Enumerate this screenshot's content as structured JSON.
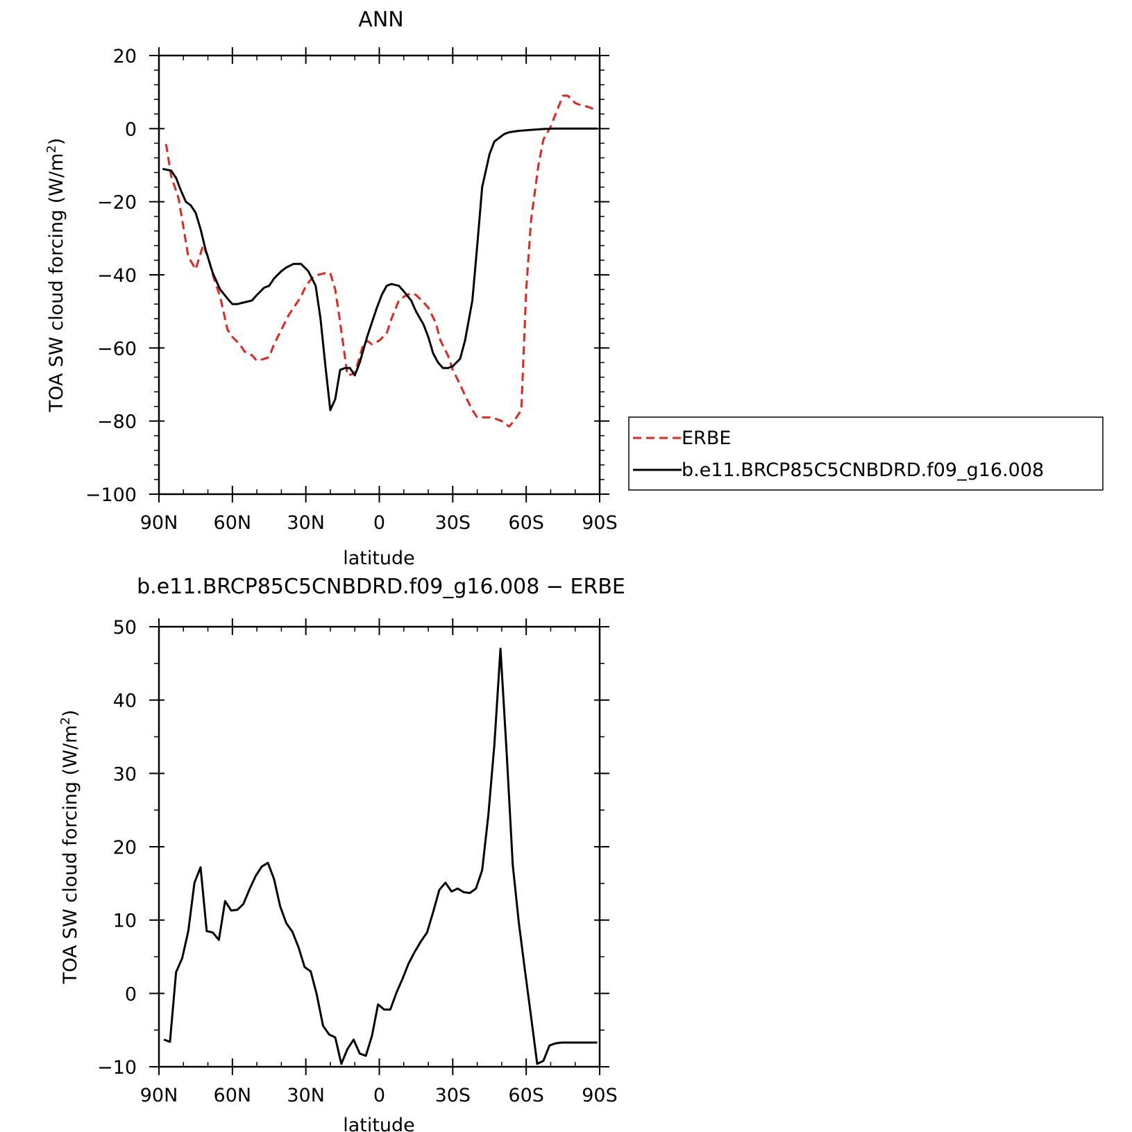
{
  "colors": {
    "erbe": "#e8231c",
    "model": "#000000",
    "frame": "#000000"
  },
  "chart_data": [
    {
      "type": "line",
      "title": "ANN",
      "xlabel": "latitude",
      "ylabel": "TOA SW cloud forcing (W/m²)",
      "ylabel_parts": {
        "main": "TOA SW cloud forcing (W/m",
        "sup": "2",
        "end": ")"
      },
      "xlim": [
        90,
        -90
      ],
      "ylim": [
        -100,
        20
      ],
      "xticks": [
        {
          "value": 90,
          "label": "90N"
        },
        {
          "value": 60,
          "label": "60N"
        },
        {
          "value": 30,
          "label": "30N"
        },
        {
          "value": 0,
          "label": "0"
        },
        {
          "value": -30,
          "label": "30S"
        },
        {
          "value": -60,
          "label": "60S"
        },
        {
          "value": -90,
          "label": "90S"
        }
      ],
      "yticks": [
        {
          "value": 20,
          "label": "20"
        },
        {
          "value": 0,
          "label": "0"
        },
        {
          "value": -20,
          "label": "−20"
        },
        {
          "value": -40,
          "label": "−40"
        },
        {
          "value": -60,
          "label": "−60"
        },
        {
          "value": -80,
          "label": "−80"
        },
        {
          "value": -100,
          "label": "−100"
        }
      ],
      "legend": {
        "position": "right"
      },
      "series": [
        {
          "name": "ERBE",
          "style": "dashed",
          "color": "#e8231c",
          "x": [
            87.5,
            87,
            85,
            82,
            80,
            78,
            75,
            72,
            70,
            68,
            65,
            62,
            60,
            57,
            55,
            52,
            50,
            47,
            45,
            43,
            40,
            37,
            35,
            32,
            30,
            27,
            25,
            22,
            20,
            18,
            16,
            13,
            10,
            7,
            5,
            3,
            0,
            -3,
            -5,
            -8,
            -10,
            -13,
            -15,
            -18,
            -20,
            -23,
            -25,
            -28,
            -30,
            -33,
            -35,
            -38,
            -40,
            -43,
            -45,
            -48,
            -50,
            -53,
            -55,
            -58,
            -60,
            -62,
            -65,
            -67,
            -70,
            -72,
            -75,
            -77,
            -80,
            -82,
            -85,
            -87,
            -88.5
          ],
          "y": [
            -4.5,
            -4.5,
            -13,
            -19,
            -27,
            -35,
            -38.5,
            -32,
            -35,
            -40,
            -46,
            -55,
            -57,
            -59,
            -61,
            -62,
            -63.5,
            -63,
            -62.5,
            -59,
            -55,
            -51,
            -49,
            -46,
            -43,
            -40.5,
            -40,
            -39.5,
            -39.5,
            -44,
            -53,
            -67.5,
            -67,
            -60,
            -58,
            -59,
            -58,
            -56,
            -52,
            -47,
            -46,
            -45,
            -45.5,
            -47.5,
            -49,
            -53,
            -58,
            -62,
            -66,
            -70,
            -73,
            -77,
            -79,
            -79,
            -79,
            -79.5,
            -80,
            -81.5,
            -80,
            -77,
            -44,
            -25,
            -10,
            -3,
            0.5,
            4,
            9,
            9,
            7,
            6.5,
            6,
            5.5,
            5
          ]
        },
        {
          "name": "b.e11.BRCP85C5CNBDRD.f09_g16.008",
          "style": "solid",
          "color": "#000000",
          "x": [
            88.5,
            85,
            83,
            81,
            79,
            77,
            75,
            73,
            71,
            68,
            65,
            62,
            60,
            58,
            55,
            52,
            50,
            47,
            45,
            43,
            40,
            38,
            35,
            32,
            29,
            26,
            24,
            22,
            20,
            18,
            16,
            14,
            12,
            10,
            8,
            5,
            3,
            1,
            -1,
            -3,
            -5,
            -8,
            -10,
            -13,
            -15,
            -18,
            -20,
            -22,
            -24,
            -26,
            -28,
            -30,
            -33,
            -35,
            -38,
            -40,
            -42,
            -45,
            -47,
            -49,
            -51,
            -53,
            -55,
            -57,
            -59,
            -61,
            -63,
            -65,
            -67,
            -69,
            -71,
            -73,
            -75,
            -77,
            -79,
            -81,
            -83,
            -85,
            -87,
            -89
          ],
          "y": [
            -11,
            -11.5,
            -13.5,
            -17,
            -20,
            -21,
            -23,
            -27.5,
            -33,
            -39.5,
            -44,
            -46.5,
            -48,
            -48,
            -47.5,
            -47,
            -45.5,
            -43.5,
            -43,
            -41,
            -39,
            -38,
            -37,
            -37,
            -39,
            -43,
            -52,
            -65,
            -77,
            -74,
            -66,
            -65.5,
            -65.5,
            -67.5,
            -64,
            -57,
            -53,
            -49,
            -45.5,
            -43,
            -42.5,
            -43,
            -44.5,
            -47,
            -50,
            -53.5,
            -57,
            -61.5,
            -64,
            -65.5,
            -65.5,
            -65,
            -63,
            -58,
            -47,
            -32,
            -16,
            -7,
            -3.5,
            -2.5,
            -1.5,
            -1,
            -0.8,
            -0.6,
            -0.5,
            -0.4,
            -0.3,
            -0.2,
            -0.1,
            -0.05,
            0,
            0,
            0,
            0,
            0,
            0,
            0,
            0,
            0,
            0
          ]
        }
      ]
    },
    {
      "type": "line",
      "title": "b.e11.BRCP85C5CNBDRD.f09_g16.008 − ERBE",
      "xlabel": "latitude",
      "ylabel": "TOA SW cloud forcing (W/m²)",
      "ylabel_parts": {
        "main": "TOA SW cloud forcing (W/m",
        "sup": "2",
        "end": ")"
      },
      "xlim": [
        90,
        -90
      ],
      "ylim": [
        -10,
        50
      ],
      "xticks": [
        {
          "value": 90,
          "label": "90N"
        },
        {
          "value": 60,
          "label": "60N"
        },
        {
          "value": 30,
          "label": "30N"
        },
        {
          "value": 0,
          "label": "0"
        },
        {
          "value": -30,
          "label": "30S"
        },
        {
          "value": -60,
          "label": "60S"
        },
        {
          "value": -90,
          "label": "90S"
        }
      ],
      "yticks": [
        {
          "value": 50,
          "label": "50"
        },
        {
          "value": 40,
          "label": "40"
        },
        {
          "value": 30,
          "label": "30"
        },
        {
          "value": 20,
          "label": "20"
        },
        {
          "value": 10,
          "label": "10"
        },
        {
          "value": 0,
          "label": "0"
        },
        {
          "value": -10,
          "label": "−10"
        }
      ],
      "series": [
        {
          "style": "solid",
          "color": "#000000",
          "x": [
            88,
            85.5,
            83,
            80.5,
            78,
            75.5,
            73,
            70.5,
            68,
            65.5,
            63,
            60.5,
            58,
            55.5,
            53,
            50.5,
            48,
            45.5,
            43,
            40.5,
            38,
            35.5,
            33,
            30.5,
            28,
            25.5,
            23,
            20.5,
            18,
            15.5,
            13,
            10.5,
            8,
            5.5,
            3,
            0.5,
            -2,
            -4.5,
            -7,
            -9.5,
            -12,
            -14.5,
            -17,
            -19.5,
            -22,
            -24.5,
            -27,
            -29.5,
            -32,
            -34.5,
            -37,
            -39.5,
            -42,
            -44.5,
            -47,
            -49.5,
            -52,
            -54.5,
            -57,
            -59.5,
            -62,
            -64.5,
            -67,
            -69.5,
            -72,
            -74.5,
            -77,
            -79.5,
            -82,
            -84.5,
            -87,
            -89
          ],
          "y": [
            -6.3,
            -6.6,
            2.9,
            4.8,
            8.5,
            15.1,
            17.2,
            8.5,
            8.3,
            7.3,
            12.6,
            11.3,
            11.4,
            12.2,
            14.2,
            16.0,
            17.3,
            17.8,
            15.6,
            11.9,
            9.6,
            8.4,
            6.3,
            3.6,
            3.0,
            -0.2,
            -4.4,
            -5.6,
            -6.0,
            -9.6,
            -7.6,
            -6.3,
            -8.2,
            -8.5,
            -5.8,
            -1.5,
            -2.2,
            -2.2,
            0.1,
            2.0,
            4.1,
            5.7,
            7.1,
            8.3,
            11.1,
            14.1,
            15.1,
            13.9,
            14.3,
            13.8,
            13.7,
            14.3,
            16.8,
            24.2,
            33.9,
            47.0,
            33.0,
            17.5,
            9.6,
            3.1,
            -3.2,
            -9.6,
            -9.2,
            -7.1,
            -6.8,
            -6.7,
            -6.7,
            -6.7,
            -6.7,
            -6.7,
            -6.7,
            -6.7
          ]
        }
      ]
    }
  ]
}
